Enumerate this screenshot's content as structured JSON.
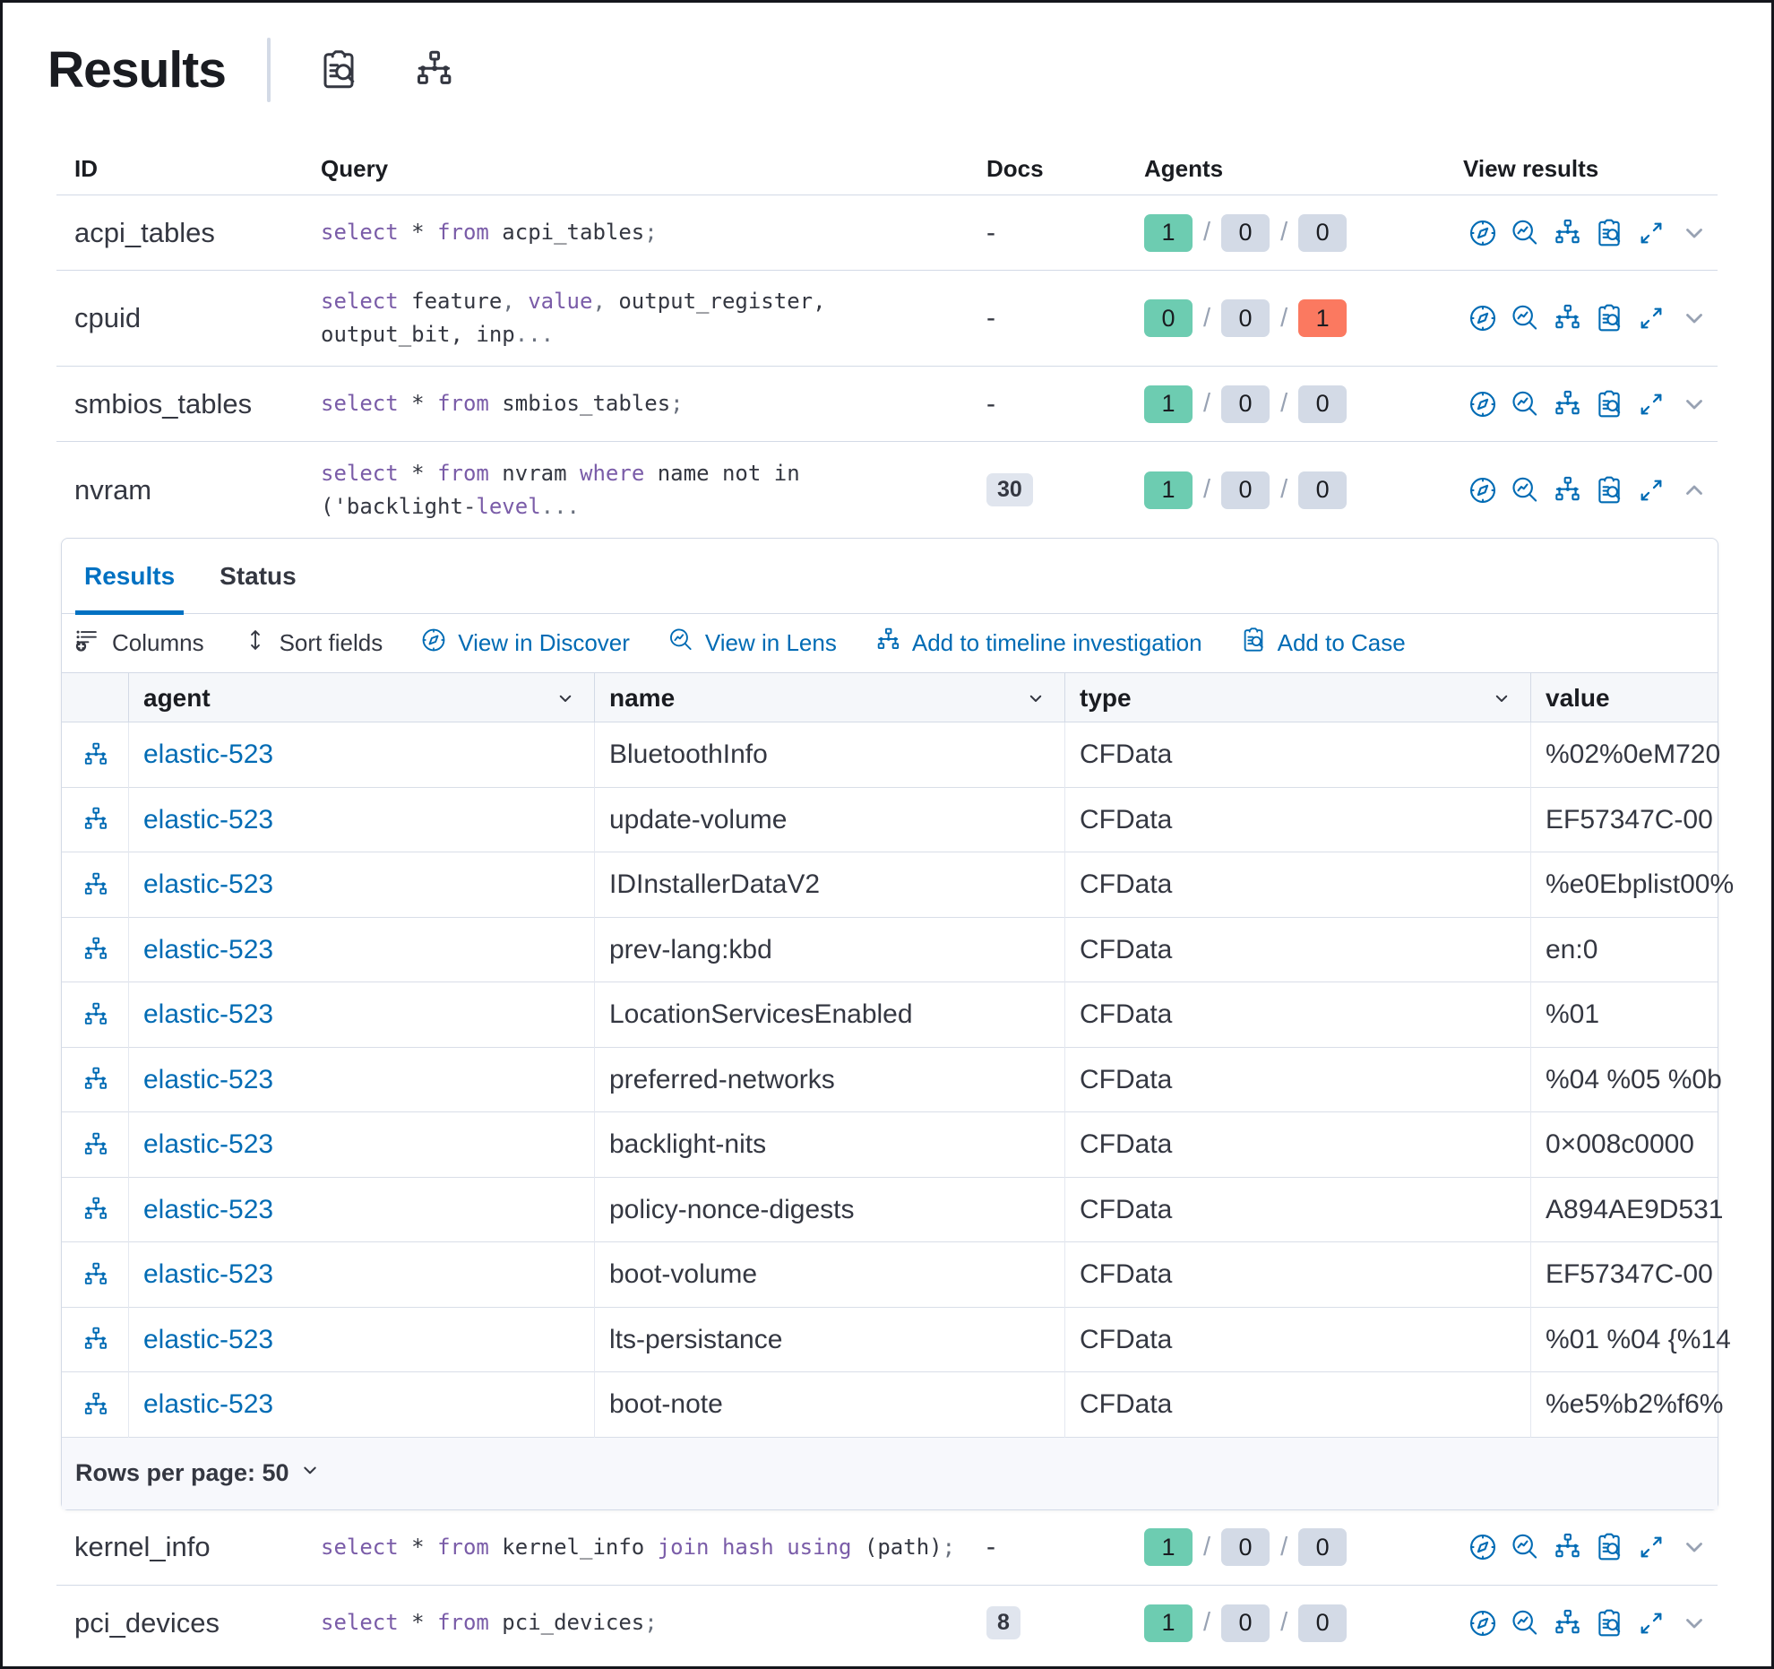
{
  "header": {
    "title": "Results",
    "actions": [
      {
        "icon": "inspect-icon"
      },
      {
        "icon": "node-tree-icon"
      }
    ]
  },
  "queries_table": {
    "columns": [
      "ID",
      "Query",
      "Docs",
      "Agents",
      "View results"
    ],
    "row_action_icons": [
      "discover-icon",
      "lens-icon",
      "timeline-icon",
      "case-icon",
      "expand-icon"
    ],
    "rows": [
      {
        "id": "acpi_tables",
        "lines": 1,
        "docs": "-",
        "docs_badge": false,
        "expanded": false,
        "agents": [
          "1",
          "0",
          "0"
        ],
        "agents_status": [
          "success",
          "neutral",
          "neutral"
        ],
        "query_tokens": [
          {
            "t": "select",
            "c": "kw"
          },
          {
            "t": " * ",
            "c": "id"
          },
          {
            "t": "from",
            "c": "kw"
          },
          {
            "t": " acpi_tables",
            "c": "id"
          },
          {
            "t": ";",
            "c": "pt"
          }
        ]
      },
      {
        "id": "cpuid",
        "lines": 2,
        "docs": "-",
        "docs_badge": false,
        "expanded": false,
        "agents": [
          "0",
          "0",
          "1"
        ],
        "agents_status": [
          "success",
          "neutral",
          "danger"
        ],
        "query_tokens": [
          {
            "t": "select",
            "c": "kw"
          },
          {
            "t": " feature",
            "c": "id"
          },
          {
            "t": ", ",
            "c": "pt"
          },
          {
            "t": "value",
            "c": "kw"
          },
          {
            "t": ", ",
            "c": "pt"
          },
          {
            "t": "output_register,",
            "c": "id"
          },
          {
            "c": "br"
          },
          {
            "t": "output_bit, inp",
            "c": "id"
          },
          {
            "t": "...",
            "c": "pt"
          }
        ]
      },
      {
        "id": "smbios_tables",
        "lines": 1,
        "docs": "-",
        "docs_badge": false,
        "expanded": false,
        "agents": [
          "1",
          "0",
          "0"
        ],
        "agents_status": [
          "success",
          "neutral",
          "neutral"
        ],
        "query_tokens": [
          {
            "t": "select",
            "c": "kw"
          },
          {
            "t": " * ",
            "c": "id"
          },
          {
            "t": "from",
            "c": "kw"
          },
          {
            "t": " smbios_tables",
            "c": "id"
          },
          {
            "t": ";",
            "c": "pt"
          }
        ]
      },
      {
        "id": "nvram",
        "lines": 2,
        "docs": "30",
        "docs_badge": true,
        "expanded": true,
        "agents": [
          "1",
          "0",
          "0"
        ],
        "agents_status": [
          "success",
          "neutral",
          "neutral"
        ],
        "query_tokens": [
          {
            "t": "select",
            "c": "kw"
          },
          {
            "t": " * ",
            "c": "id"
          },
          {
            "t": "from",
            "c": "kw"
          },
          {
            "t": " nvram ",
            "c": "id"
          },
          {
            "t": "where",
            "c": "kw"
          },
          {
            "t": " name not in",
            "c": "id"
          },
          {
            "c": "br"
          },
          {
            "t": "('backlight-",
            "c": "id"
          },
          {
            "t": "level",
            "c": "kw"
          },
          {
            "t": "...",
            "c": "pt"
          }
        ]
      },
      {
        "id": "kernel_info",
        "lines": 1,
        "docs": "-",
        "docs_badge": false,
        "expanded": false,
        "agents": [
          "1",
          "0",
          "0"
        ],
        "agents_status": [
          "success",
          "neutral",
          "neutral"
        ],
        "query_tokens": [
          {
            "t": "select",
            "c": "kw"
          },
          {
            "t": " * ",
            "c": "id"
          },
          {
            "t": "from",
            "c": "kw"
          },
          {
            "t": " kernel_info ",
            "c": "id"
          },
          {
            "t": "join",
            "c": "kw"
          },
          {
            "t": " ",
            "c": "id"
          },
          {
            "t": "hash",
            "c": "kw"
          },
          {
            "t": " ",
            "c": "id"
          },
          {
            "t": "using",
            "c": "kw"
          },
          {
            "t": " (path)",
            "c": "id"
          },
          {
            "t": ";",
            "c": "pt"
          }
        ]
      },
      {
        "id": "pci_devices",
        "lines": 1,
        "docs": "8",
        "docs_badge": true,
        "expanded": false,
        "agents": [
          "1",
          "0",
          "0"
        ],
        "agents_status": [
          "success",
          "neutral",
          "neutral"
        ],
        "query_tokens": [
          {
            "t": "select",
            "c": "kw"
          },
          {
            "t": " * ",
            "c": "id"
          },
          {
            "t": "from",
            "c": "kw"
          },
          {
            "t": " pci_devices",
            "c": "id"
          },
          {
            "t": ";",
            "c": "pt"
          }
        ]
      }
    ]
  },
  "panel": {
    "tabs": [
      {
        "label": "Results",
        "active": true
      },
      {
        "label": "Status",
        "active": false
      }
    ],
    "toolbar": [
      {
        "label": "Columns",
        "icon": "columns-icon",
        "style": "dark"
      },
      {
        "label": "Sort fields",
        "icon": "sort-fields-icon",
        "style": "dark"
      },
      {
        "label": "View in Discover",
        "icon": "discover-icon",
        "style": "link"
      },
      {
        "label": "View in Lens",
        "icon": "lens-icon",
        "style": "link"
      },
      {
        "label": "Add to timeline investigation",
        "icon": "timeline-icon",
        "style": "link"
      },
      {
        "label": "Add to Case",
        "icon": "case-icon",
        "style": "link"
      }
    ],
    "grid": {
      "columns": [
        "agent",
        "name",
        "type",
        "value"
      ],
      "rows": [
        {
          "agent": "elastic-523",
          "name": "BluetoothInfo",
          "type": "CFData",
          "value": "%02%0eM720"
        },
        {
          "agent": "elastic-523",
          "name": "update-volume",
          "type": "CFData",
          "value": "EF57347C-00"
        },
        {
          "agent": "elastic-523",
          "name": "IDInstallerDataV2",
          "type": "CFData",
          "value": "%e0Ebplist00%"
        },
        {
          "agent": "elastic-523",
          "name": "prev-lang:kbd",
          "type": "CFData",
          "value": "en:0"
        },
        {
          "agent": "elastic-523",
          "name": "LocationServicesEnabled",
          "type": "CFData",
          "value": "%01"
        },
        {
          "agent": "elastic-523",
          "name": "preferred-networks",
          "type": "CFData",
          "value": "%04 %05 %0b"
        },
        {
          "agent": "elastic-523",
          "name": "backlight-nits",
          "type": "CFData",
          "value": "0×008c0000"
        },
        {
          "agent": "elastic-523",
          "name": "policy-nonce-digests",
          "type": "CFData",
          "value": "A894AE9D531"
        },
        {
          "agent": "elastic-523",
          "name": "boot-volume",
          "type": "CFData",
          "value": "EF57347C-00"
        },
        {
          "agent": "elastic-523",
          "name": "lts-persistance",
          "type": "CFData",
          "value": "%01 %04 {%14"
        },
        {
          "agent": "elastic-523",
          "name": "boot-note",
          "type": "CFData",
          "value": "%e5%b2%f6%"
        }
      ]
    },
    "footer": {
      "rows_per_page": "Rows per page: 50"
    }
  },
  "colors": {
    "link": "#006bb4",
    "tab_active": "#0071c2",
    "keyword_purple": "#7a5ca8",
    "text": "#343741",
    "muted": "#69707d",
    "border": "#d3dae6",
    "badge_success": "#6dccb1",
    "badge_neutral": "#d3dae6",
    "badge_danger": "#fb7960",
    "docs_badge_bg": "#e0e5ee",
    "grid_header_bg": "#f5f7fa",
    "footer_bg": "#f7f8fc"
  }
}
